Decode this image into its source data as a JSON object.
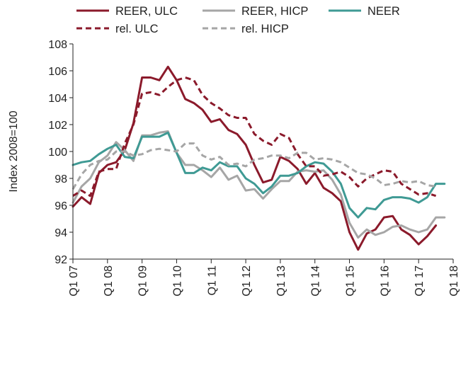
{
  "chart_data": {
    "type": "line",
    "ylabel": "Index 2008=100",
    "ylim": [
      92,
      108
    ],
    "yticks": [
      92,
      94,
      96,
      98,
      100,
      102,
      104,
      106,
      108
    ],
    "x_range": [
      0,
      44
    ],
    "xticks": [
      {
        "x": 0,
        "label": "Q1 07"
      },
      {
        "x": 4,
        "label": "Q1 08"
      },
      {
        "x": 8,
        "label": "Q1 09"
      },
      {
        "x": 12,
        "label": "Q1 10"
      },
      {
        "x": 16,
        "label": "Q1 11"
      },
      {
        "x": 20,
        "label": "Q1 12"
      },
      {
        "x": 24,
        "label": "Q1 13"
      },
      {
        "x": 28,
        "label": "Q1 14"
      },
      {
        "x": 32,
        "label": "Q1 15"
      },
      {
        "x": 36,
        "label": "Q1 16"
      },
      {
        "x": 40,
        "label": "Q1 17"
      },
      {
        "x": 44,
        "label": "Q1 18"
      }
    ],
    "grid": false,
    "legend_position": "top",
    "series": [
      {
        "name": "REER, ULC",
        "color": "#8b1a2b",
        "dash": "solid",
        "values": [
          95.9,
          96.6,
          96.1,
          98.4,
          99.0,
          99.2,
          100.1,
          102.1,
          105.5,
          105.5,
          105.3,
          106.3,
          105.3,
          103.9,
          103.6,
          103.1,
          102.2,
          102.4,
          101.6,
          101.3,
          100.5,
          99.0,
          97.7,
          97.9,
          99.6,
          99.3,
          98.7,
          97.6,
          98.4,
          97.3,
          96.9,
          96.3,
          94.0,
          92.7,
          93.9,
          94.2,
          95.1,
          95.2,
          94.2,
          93.8,
          93.1,
          93.7,
          94.5
        ]
      },
      {
        "name": "REER, HICP",
        "color": "#a6a6a6",
        "dash": "solid",
        "values": [
          96.2,
          97.4,
          98.0,
          99.2,
          99.7,
          100.7,
          100.1,
          99.3,
          101.2,
          101.2,
          101.4,
          101.5,
          99.9,
          99.0,
          99.0,
          98.6,
          98.1,
          98.8,
          97.9,
          98.2,
          97.1,
          97.2,
          96.5,
          97.2,
          97.8,
          97.8,
          98.5,
          98.6,
          98.5,
          98.6,
          97.9,
          96.8,
          94.7,
          93.6,
          94.2,
          93.8,
          94.0,
          94.4,
          94.5,
          94.2,
          94.0,
          94.2,
          95.1,
          95.1
        ]
      },
      {
        "name": "NEER",
        "color": "#3f9a94",
        "dash": "solid",
        "values": [
          99.0,
          99.2,
          99.3,
          99.8,
          100.2,
          100.5,
          99.6,
          99.5,
          101.1,
          101.1,
          101.1,
          101.4,
          99.9,
          98.4,
          98.4,
          98.8,
          98.6,
          99.2,
          98.9,
          98.9,
          98.0,
          97.6,
          96.9,
          97.4,
          98.2,
          98.2,
          98.4,
          98.9,
          99.2,
          99.1,
          98.5,
          97.6,
          95.8,
          95.1,
          95.8,
          95.7,
          96.4,
          96.6,
          96.6,
          96.5,
          96.2,
          96.6,
          97.6,
          97.6
        ]
      },
      {
        "name": "rel. ULC",
        "color": "#8b1a2b",
        "dash": "dashed",
        "values": [
          96.7,
          97.1,
          96.7,
          98.5,
          98.7,
          98.7,
          100.6,
          102.0,
          104.3,
          104.4,
          104.2,
          104.8,
          105.3,
          105.5,
          105.3,
          104.2,
          103.6,
          103.2,
          102.7,
          102.5,
          102.5,
          101.3,
          100.8,
          100.5,
          101.3,
          101.0,
          99.8,
          98.9,
          98.9,
          98.2,
          98.3,
          98.5,
          98.1,
          97.4,
          98.0,
          98.3,
          98.6,
          98.5,
          97.6,
          97.2,
          96.8,
          96.9,
          96.7
        ]
      },
      {
        "name": "rel. HICP",
        "color": "#a6a6a6",
        "dash": "dashed",
        "values": [
          97.2,
          98.3,
          99.0,
          99.3,
          99.4,
          100.0,
          100.0,
          99.7,
          99.8,
          100.1,
          100.2,
          100.1,
          100.0,
          100.6,
          100.6,
          99.7,
          99.4,
          99.6,
          99.0,
          99.1,
          98.9,
          99.4,
          99.5,
          99.7,
          99.7,
          99.5,
          99.9,
          99.9,
          99.4,
          99.5,
          99.4,
          99.2,
          98.8,
          98.4,
          98.3,
          98.0,
          97.5,
          97.6,
          97.8,
          97.7,
          97.8,
          97.5,
          97.4
        ]
      }
    ]
  }
}
